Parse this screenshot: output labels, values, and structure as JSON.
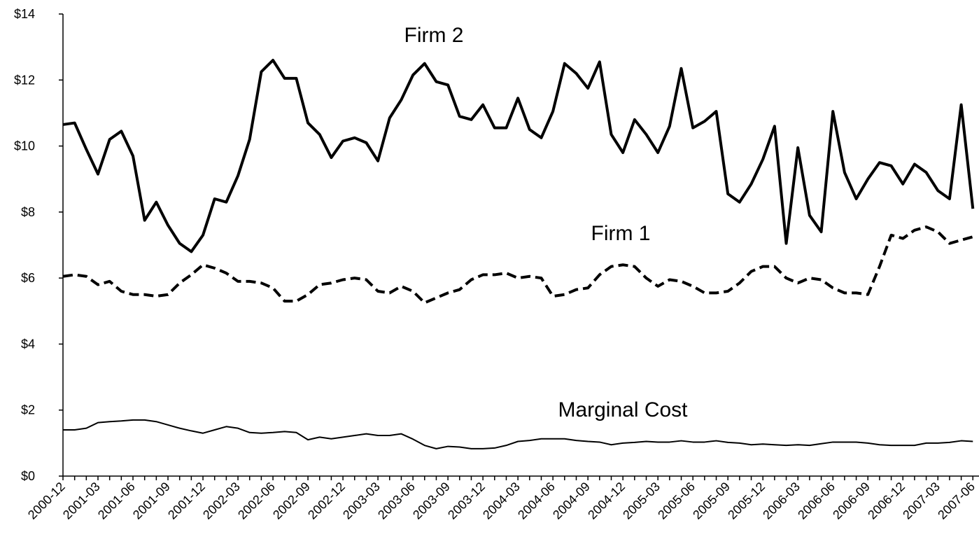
{
  "chart_data": {
    "type": "line",
    "categories": [
      "2000-12",
      null,
      null,
      "2001-03",
      null,
      null,
      "2001-06",
      null,
      null,
      "2001-09",
      null,
      null,
      "2001-12",
      null,
      null,
      "2002-03",
      null,
      null,
      "2002-06",
      null,
      null,
      "2002-09",
      null,
      null,
      "2002-12",
      null,
      null,
      "2003-03",
      null,
      null,
      "2003-06",
      null,
      null,
      "2003-09",
      null,
      null,
      "2003-12",
      null,
      null,
      "2004-03",
      null,
      null,
      "2004-06",
      null,
      null,
      "2004-09",
      null,
      null,
      "2004-12",
      null,
      null,
      "2005-03",
      null,
      null,
      "2005-06",
      null,
      null,
      "2005-09",
      null,
      null,
      "2005-12",
      null,
      null,
      "2006-03",
      null,
      null,
      "2006-06",
      null,
      null,
      "2006-09",
      null,
      null,
      "2006-12",
      null,
      null,
      "2007-03",
      null,
      null,
      "2007-06"
    ],
    "series": [
      {
        "name": "Firm 2",
        "color": "#000000",
        "linestyle": "solid",
        "values": [
          10.65,
          10.7,
          9.9,
          9.15,
          10.2,
          10.45,
          9.7,
          7.75,
          8.3,
          7.6,
          7.05,
          6.8,
          7.3,
          8.4,
          8.3,
          9.1,
          10.2,
          12.25,
          12.6,
          12.05,
          12.05,
          10.7,
          10.35,
          9.65,
          10.15,
          10.25,
          10.1,
          9.55,
          10.85,
          11.4,
          12.15,
          12.5,
          11.95,
          11.85,
          10.9,
          10.8,
          11.25,
          10.55,
          10.55,
          11.45,
          10.5,
          10.25,
          11.05,
          12.5,
          12.2,
          11.75,
          12.55,
          10.35,
          9.8,
          10.8,
          10.35,
          9.8,
          10.6,
          12.35,
          10.55,
          10.75,
          11.05,
          8.55,
          8.3,
          8.85,
          9.6,
          10.6,
          7.05,
          9.95,
          7.9,
          7.4,
          11.05,
          9.2,
          8.4,
          9.0,
          9.5,
          9.4,
          8.85,
          9.45,
          9.2,
          8.65,
          8.4,
          11.25,
          8.1
        ]
      },
      {
        "name": "Firm 1",
        "color": "#000000",
        "linestyle": "dashed",
        "values": [
          6.05,
          6.1,
          6.05,
          5.8,
          5.9,
          5.6,
          5.5,
          5.5,
          5.45,
          5.5,
          5.85,
          6.1,
          6.4,
          6.3,
          6.15,
          5.9,
          5.9,
          5.85,
          5.7,
          5.3,
          5.3,
          5.5,
          5.8,
          5.85,
          5.95,
          6.0,
          5.95,
          5.6,
          5.55,
          5.75,
          5.6,
          5.25,
          5.4,
          5.55,
          5.65,
          5.95,
          6.1,
          6.1,
          6.15,
          6.0,
          6.05,
          6.0,
          5.45,
          5.5,
          5.65,
          5.7,
          6.1,
          6.35,
          6.4,
          6.35,
          6.0,
          5.75,
          5.95,
          5.9,
          5.75,
          5.55,
          5.55,
          5.6,
          5.85,
          6.2,
          6.35,
          6.35,
          6.0,
          5.85,
          6.0,
          5.95,
          5.7,
          5.55,
          5.55,
          5.5,
          6.35,
          7.3,
          7.2,
          7.45,
          7.55,
          7.4,
          7.05,
          7.15,
          7.25
        ]
      },
      {
        "name": "Marginal Cost",
        "color": "#000000",
        "linestyle": "solid",
        "values": [
          1.4,
          1.4,
          1.45,
          1.62,
          1.65,
          1.67,
          1.7,
          1.7,
          1.65,
          1.55,
          1.45,
          1.37,
          1.3,
          1.4,
          1.5,
          1.45,
          1.32,
          1.3,
          1.32,
          1.35,
          1.32,
          1.1,
          1.18,
          1.13,
          1.18,
          1.23,
          1.28,
          1.23,
          1.23,
          1.28,
          1.12,
          0.93,
          0.83,
          0.9,
          0.88,
          0.83,
          0.83,
          0.85,
          0.93,
          1.05,
          1.08,
          1.13,
          1.13,
          1.13,
          1.08,
          1.05,
          1.03,
          0.95,
          1.0,
          1.02,
          1.05,
          1.03,
          1.03,
          1.07,
          1.03,
          1.03,
          1.07,
          1.02,
          1.0,
          0.95,
          0.97,
          0.95,
          0.93,
          0.95,
          0.93,
          0.98,
          1.03,
          1.03,
          1.03,
          1.0,
          0.95,
          0.93,
          0.93,
          0.93,
          1.0,
          1.0,
          1.02,
          1.07,
          1.05
        ]
      }
    ],
    "ylim": [
      0,
      14
    ],
    "yticks": [
      {
        "value": 0,
        "label": "$0"
      },
      {
        "value": 2,
        "label": "$2"
      },
      {
        "value": 4,
        "label": "$4"
      },
      {
        "value": 6,
        "label": "$6"
      },
      {
        "value": 8,
        "label": "$8"
      },
      {
        "value": 10,
        "label": "$10"
      },
      {
        "value": 12,
        "label": "$12"
      },
      {
        "value": 14,
        "label": "$14"
      }
    ],
    "grid": false
  }
}
